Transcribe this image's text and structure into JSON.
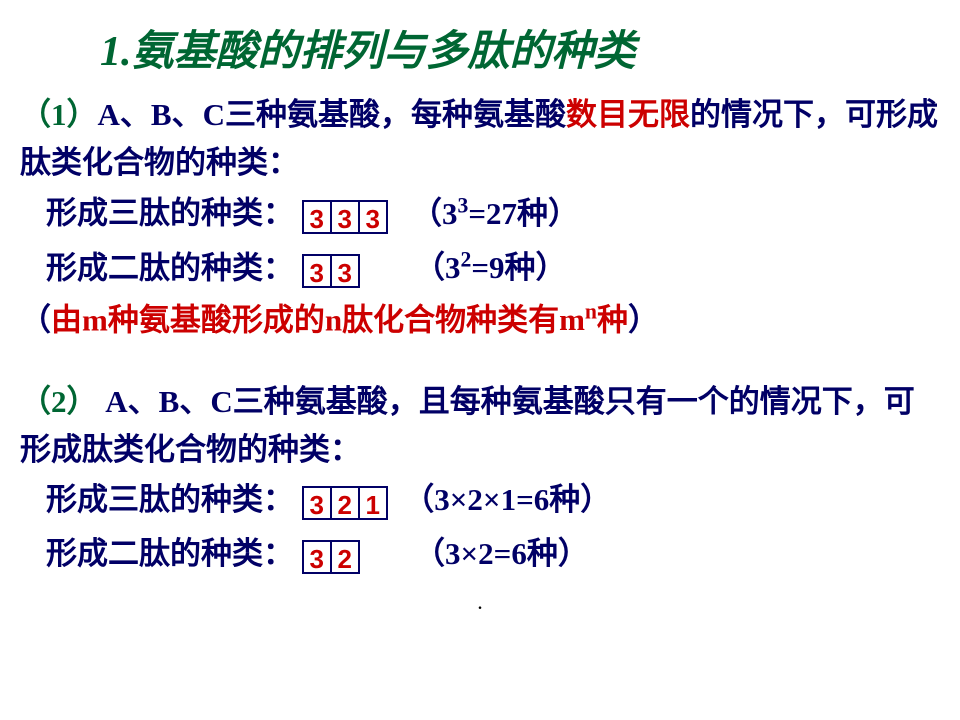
{
  "title_num": "1.",
  "title_text": "氨基酸的排列与多肽的种类",
  "colors": {
    "green": "#006633",
    "blue": "#010066",
    "red": "#cc0000",
    "bg": "#ffffff"
  },
  "case1": {
    "label": "（1）",
    "pre": "A、B、C三种氨基酸，每种氨基酸",
    "red": "数目无限",
    "post": "的情况下，可形成肽类化合物的种类：",
    "tri_label": "形成三肽的种类：",
    "tri_cells": [
      "3",
      "3",
      "3"
    ],
    "tri_result_pre": "（3",
    "tri_result_sup": "3",
    "tri_result_post": "=27种）",
    "di_label": "形成二肽的种类：",
    "di_cells": [
      "3",
      "3"
    ],
    "di_result_pre": "（3",
    "di_result_sup": "2",
    "di_result_post": "=9种）"
  },
  "rule": {
    "open": "（",
    "p1": "由",
    "m": "m",
    "p2": "种氨基酸形成的",
    "n": "n",
    "p3": "肽化合物种类有",
    "mn_base": "m",
    "mn_sup": "n",
    "p4": "种",
    "close": "）"
  },
  "case2": {
    "label": "（2）",
    "text": " A、B、C三种氨基酸，且每种氨基酸只有一个的情况下，可形成肽类化合物的种类：",
    "tri_label": "形成三肽的种类：",
    "tri_cells": [
      "3",
      "2",
      "1"
    ],
    "tri_result": "（3×2×1=6种）",
    "di_label": "形成二肽的种类：",
    "di_cells": [
      "3",
      "2"
    ],
    "di_result": "（3×2=6种）"
  },
  "dot": "."
}
